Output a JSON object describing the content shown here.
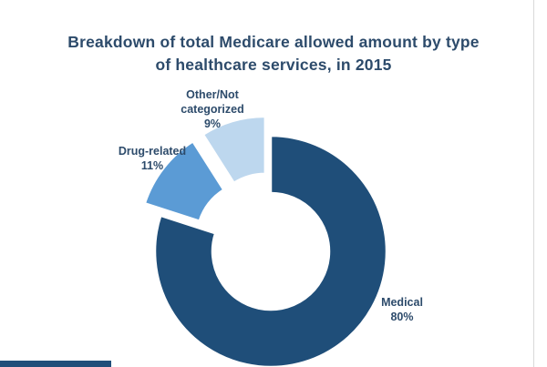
{
  "chart_data": {
    "type": "pie",
    "variant": "donut",
    "title_lines": [
      "Breakdown of total Medicare allowed amount by type",
      "of healthcare services, in 2015"
    ],
    "slices": [
      {
        "label": "Medical",
        "value": 80,
        "value_label": "80%",
        "color": "#1f4e79",
        "exploded": false
      },
      {
        "label": "Drug-related",
        "value": 11,
        "value_label": "11%",
        "color": "#5b9bd5",
        "exploded": true
      },
      {
        "label": "Other/Not categorized",
        "label_lines": [
          "Other/Not",
          "categorized"
        ],
        "value": 9,
        "value_label": "9%",
        "color": "#bdd7ee",
        "exploded": true
      }
    ],
    "legend": "none"
  }
}
